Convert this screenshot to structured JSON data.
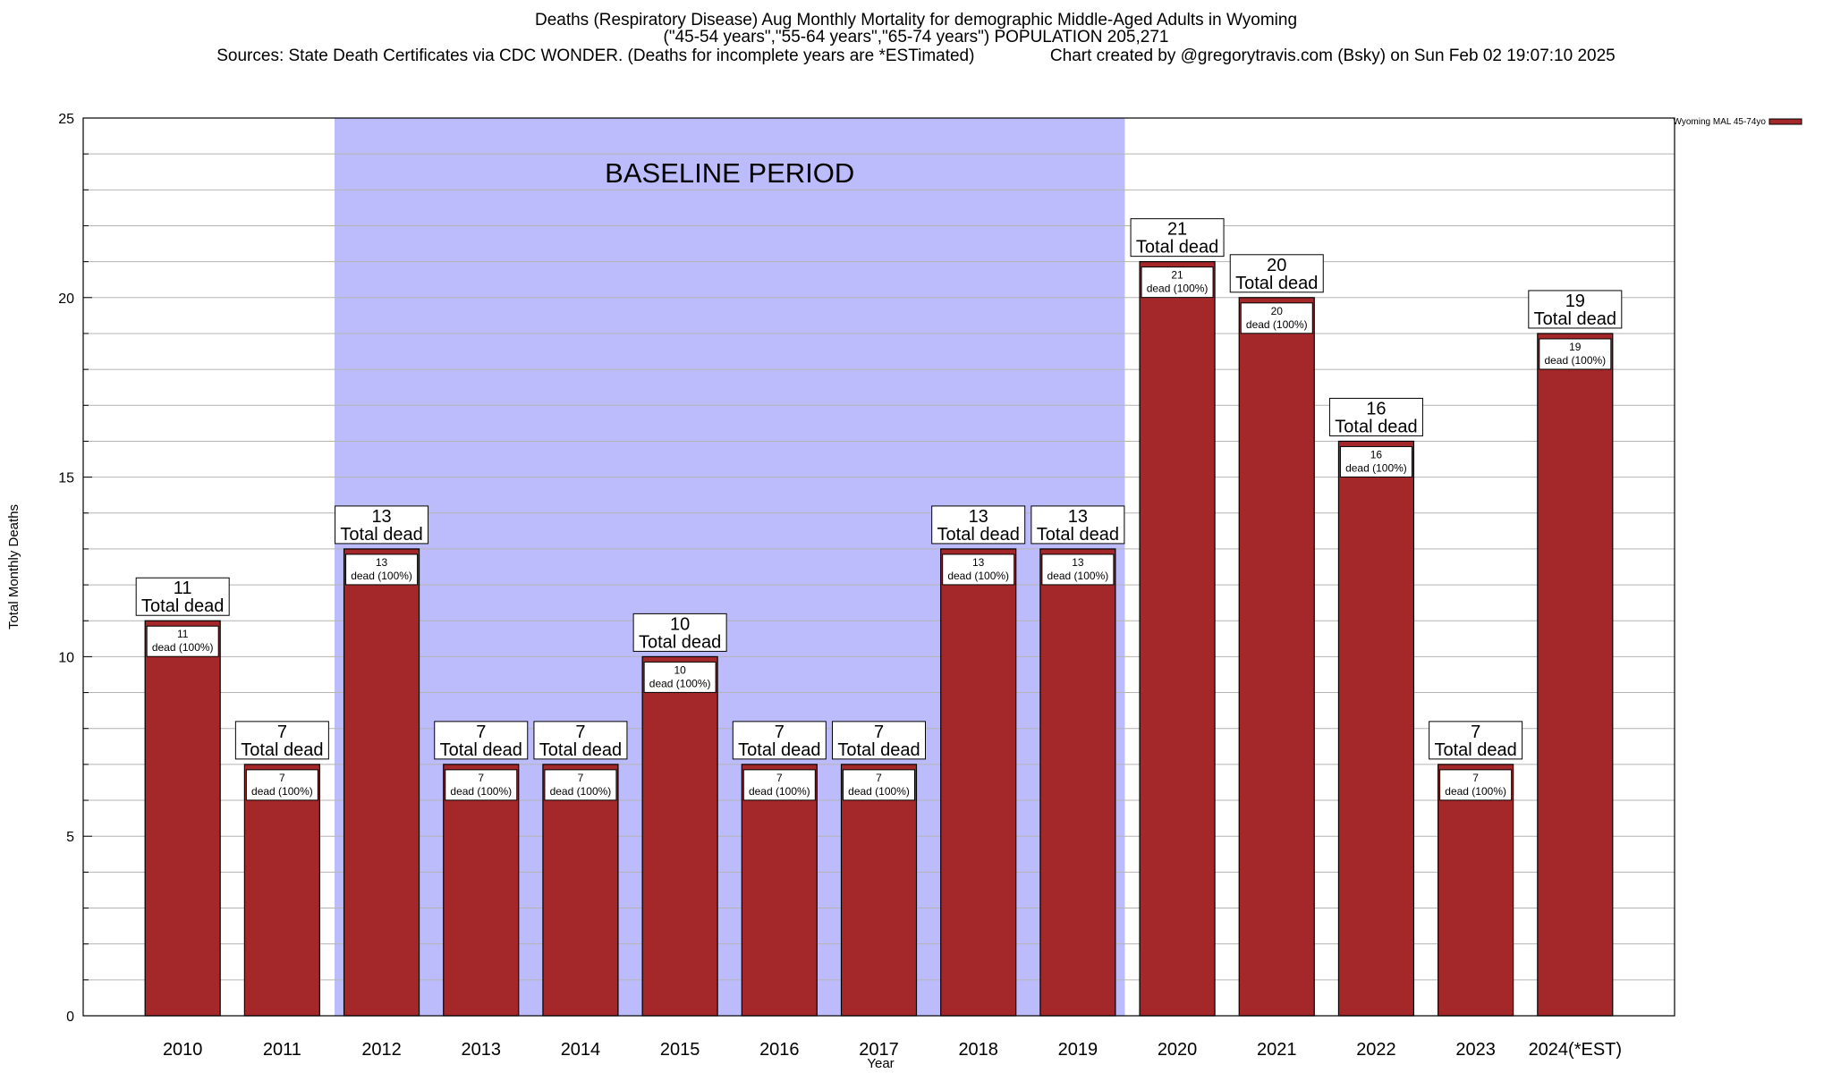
{
  "title": {
    "line1": "Deaths (Respiratory Disease) Aug Monthly Mortality for demographic Middle-Aged Adults in Wyoming",
    "line2": "(\"45-54 years\",\"55-64 years\",\"65-74 years\") POPULATION 205,271",
    "line3": "Sources: State Death Certificates via CDC WONDER. (Deaths for incomplete years are *ESTimated)                Chart created by @gregorytravis.com (Bsky) on Sun Feb 02 19:07:10 2025"
  },
  "colors": {
    "bar": "#a4282a",
    "baseline_band": "#bcbcfd",
    "grid": "#b4b4b4"
  },
  "chart_data": {
    "type": "bar",
    "categories": [
      "2010",
      "2011",
      "2012",
      "2013",
      "2014",
      "2015",
      "2016",
      "2017",
      "2018",
      "2019",
      "2020",
      "2021",
      "2022",
      "2023",
      "2024(*EST)"
    ],
    "series": [
      {
        "name": "Wyoming MAL 45-74yo",
        "values": [
          11,
          7,
          13,
          7,
          7,
          10,
          7,
          7,
          13,
          13,
          21,
          20,
          16,
          7,
          19
        ]
      }
    ],
    "xlabel": "Year",
    "ylabel": "Total Monthly Deaths",
    "ylim": [
      0,
      25
    ],
    "yticks": [
      0,
      5,
      10,
      15,
      20,
      25
    ],
    "grid": true,
    "legend_position": "right, top",
    "total_label_text": "Total dead",
    "inner_label_text": "dead (100%)",
    "baseline_band": {
      "label": "BASELINE PERIOD",
      "from_category": "2012",
      "to_category": "2019"
    }
  }
}
